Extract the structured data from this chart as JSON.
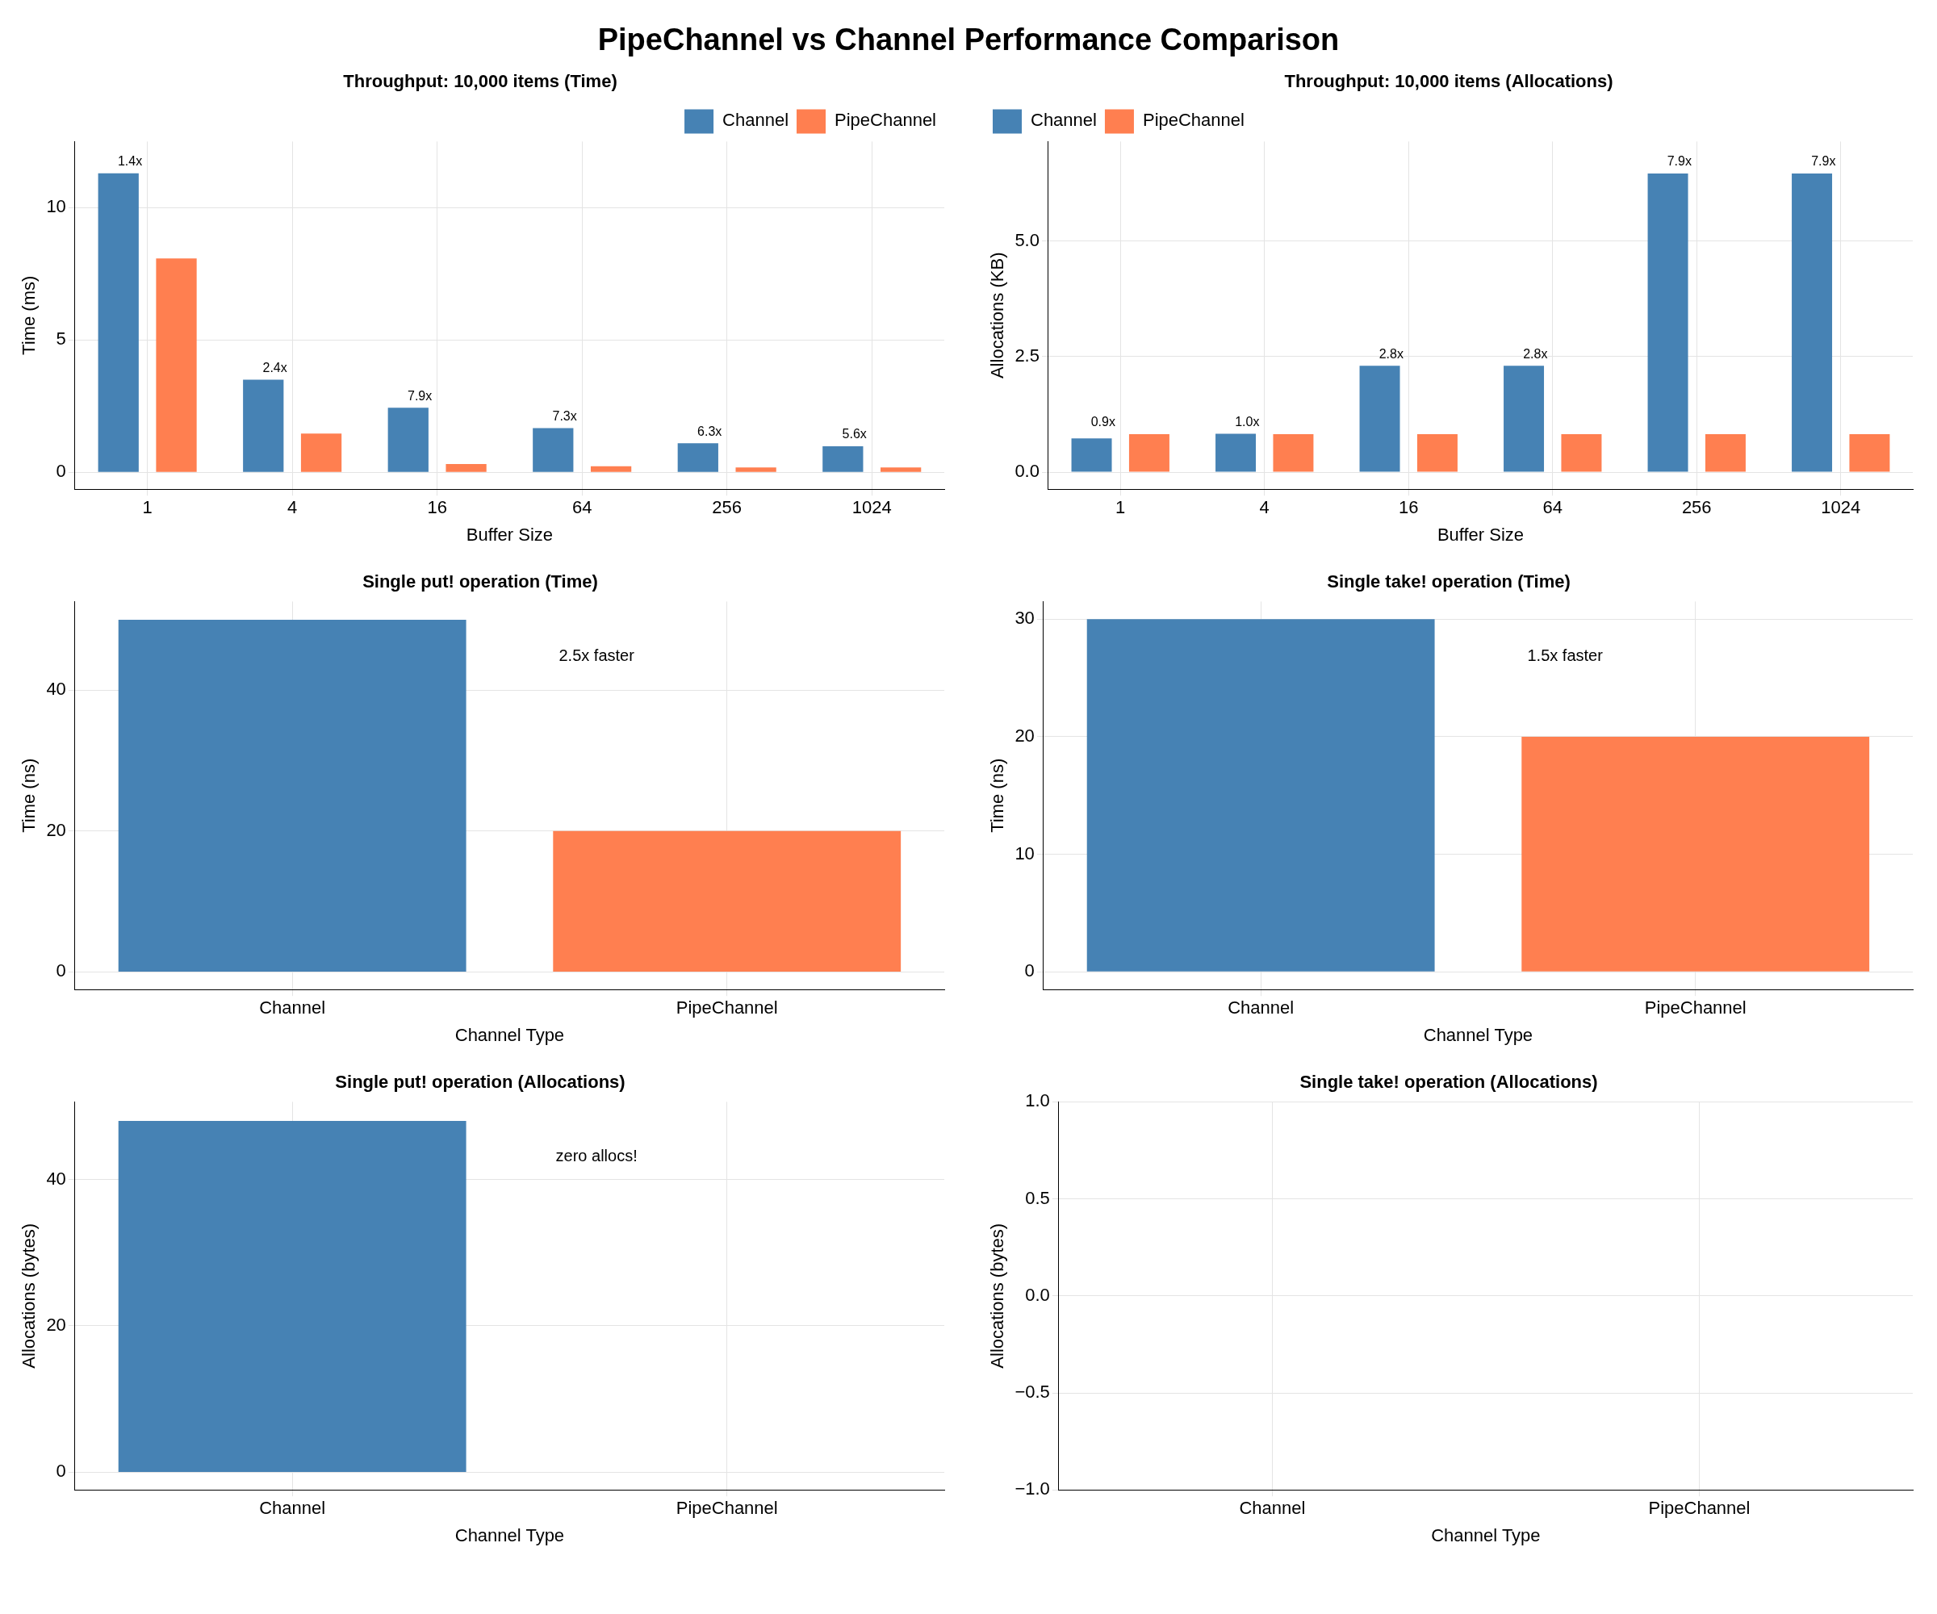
{
  "chart_data": [
    {
      "type": "bar",
      "title": "Throughput: 10,000 items (Time)",
      "xlabel": "Buffer Size",
      "ylabel": "Time (ms)",
      "categories": [
        "1",
        "4",
        "16",
        "64",
        "256",
        "1024"
      ],
      "series": [
        {
          "name": "Channel",
          "color": "#4682b4",
          "values": [
            11.3,
            3.5,
            2.44,
            1.67,
            1.1,
            0.98
          ]
        },
        {
          "name": "PipeChannel",
          "color": "#ff7f50",
          "values": [
            8.08,
            1.46,
            0.31,
            0.23,
            0.18,
            0.18
          ]
        }
      ],
      "ylim": [
        -0.64,
        12.5
      ],
      "yticks": [
        0,
        5,
        10
      ],
      "grid": true,
      "legend": "top right",
      "annotations": [
        "PipeChannel vs Channel Performance Comparison",
        "1.4x",
        "2.4x",
        "7.9x",
        "7.3x",
        "6.3x",
        "5.6x"
      ]
    },
    {
      "type": "bar",
      "title": "Throughput: 10,000 items (Allocations)",
      "xlabel": "Buffer Size",
      "ylabel": "Allocations (KB)",
      "categories": [
        "1",
        "4",
        "16",
        "64",
        "256",
        "1024"
      ],
      "series": [
        {
          "name": "Channel",
          "color": "#4682b4",
          "values": [
            0.73,
            0.83,
            2.3,
            2.3,
            6.46,
            6.46
          ]
        },
        {
          "name": "PipeChannel",
          "color": "#ff7f50",
          "values": [
            0.82,
            0.82,
            0.82,
            0.82,
            0.82,
            0.82
          ]
        }
      ],
      "ylim": [
        -0.37,
        7.15
      ],
      "yticks": [
        {
          "value": 0,
          "label": "0.0"
        },
        {
          "value": 2.5,
          "label": "2.5"
        },
        {
          "value": 5,
          "label": "5.0"
        }
      ],
      "grid": true,
      "legend": "top left",
      "annotations": [
        "0.9x",
        "1.0x",
        "2.8x",
        "2.8x",
        "7.9x",
        "7.9x"
      ]
    },
    {
      "type": "bar",
      "title": "Single put! operation (Time)",
      "xlabel": "Channel Type",
      "ylabel": "Time (ns)",
      "categories": [
        "Channel",
        "PipeChannel"
      ],
      "values": [
        50,
        20
      ],
      "colors": [
        "#4682b4",
        "#ff7f50"
      ],
      "ylim": [
        -2.5,
        52.6
      ],
      "yticks": [
        0,
        20,
        40
      ],
      "grid": true,
      "annotations": [
        "2.5x faster"
      ]
    },
    {
      "type": "bar",
      "title": "Single take! operation (Time)",
      "xlabel": "Channel Type",
      "ylabel": "Time (ns)",
      "categories": [
        "Channel",
        "PipeChannel"
      ],
      "values": [
        30,
        20
      ],
      "colors": [
        "#4682b4",
        "#ff7f50"
      ],
      "ylim": [
        -1.5,
        31.5
      ],
      "yticks": [
        0,
        10,
        20,
        30
      ],
      "grid": true,
      "annotations": [
        "1.5x faster"
      ]
    },
    {
      "type": "bar",
      "title": "Single put! operation (Allocations)",
      "xlabel": "Channel Type",
      "ylabel": "Allocations (bytes)",
      "categories": [
        "Channel",
        "PipeChannel"
      ],
      "values": [
        48,
        0
      ],
      "colors": [
        "#4682b4",
        "#ff7f50"
      ],
      "ylim": [
        -2.4,
        50.6
      ],
      "yticks": [
        0,
        20,
        40
      ],
      "grid": true,
      "annotations": [
        "zero allocs!"
      ]
    },
    {
      "type": "bar",
      "title": "Single take! operation (Allocations)",
      "xlabel": "Channel Type",
      "ylabel": "Allocations (bytes)",
      "categories": [
        "Channel",
        "PipeChannel"
      ],
      "values": [
        0,
        0
      ],
      "colors": [
        "#4682b4",
        "#ff7f50"
      ],
      "ylim": [
        -1,
        1
      ],
      "yticks": [
        {
          "value": -1,
          "label": "−1.0"
        },
        {
          "value": -0.5,
          "label": "−0.5"
        },
        {
          "value": 0,
          "label": "0.0"
        },
        {
          "value": 0.5,
          "label": "0.5"
        },
        {
          "value": 1,
          "label": "1.0"
        }
      ],
      "grid": true
    }
  ]
}
